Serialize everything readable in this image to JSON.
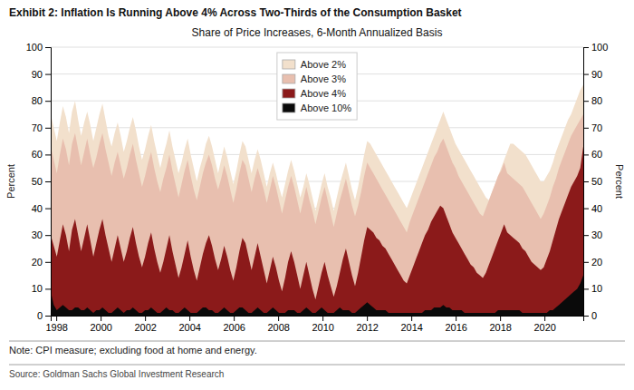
{
  "chart_data": {
    "type": "area",
    "title": "Exhibit 2: Inflation Is Running Above 4% Across Two-Thirds of the Consumption Basket",
    "subtitle": "Share of Price Increases, 6-Month Annualized Basis",
    "ylabel": "Percent",
    "y2label": "Percent",
    "annotations": [
      "Note: CPI measure; excluding food at home and energy.",
      "Source: Goldman Sachs Global Investment Research"
    ],
    "xlim": [
      1997.75,
      2021.75
    ],
    "xticks": [
      1998,
      2000,
      2002,
      2004,
      2006,
      2008,
      2010,
      2012,
      2014,
      2016,
      2018,
      2020
    ],
    "ylim": [
      0,
      100
    ],
    "yticks": [
      0,
      10,
      20,
      30,
      40,
      50,
      60,
      70,
      80,
      90,
      100
    ],
    "y2lim": [
      0,
      100
    ],
    "y2ticks": [
      0,
      10,
      20,
      30,
      40,
      50,
      60,
      70,
      80,
      90,
      100
    ],
    "grid": true,
    "legend": "top",
    "x": [
      1997.75,
      1997.8871,
      1998.0243,
      1998.1614,
      1998.2986,
      1998.4357,
      1998.5729,
      1998.71,
      1998.8471,
      1998.9843,
      1999.1214,
      1999.2586,
      1999.3957,
      1999.5329,
      1999.67,
      1999.8071,
      1999.9443,
      2000.0814,
      2000.2186,
      2000.3557,
      2000.4929,
      2000.63,
      2000.7671,
      2000.9043,
      2001.0414,
      2001.1786,
      2001.3157,
      2001.4529,
      2001.59,
      2001.7271,
      2001.8643,
      2002.0014,
      2002.1386,
      2002.2757,
      2002.4129,
      2002.55,
      2002.6871,
      2002.8243,
      2002.9614,
      2003.0986,
      2003.2357,
      2003.3729,
      2003.51,
      2003.6471,
      2003.7843,
      2003.9214,
      2004.0586,
      2004.1957,
      2004.3329,
      2004.47,
      2004.6071,
      2004.7443,
      2004.8814,
      2005.0186,
      2005.1557,
      2005.2929,
      2005.43,
      2005.5671,
      2005.7043,
      2005.8414,
      2005.9786,
      2006.1157,
      2006.2529,
      2006.39,
      2006.5271,
      2006.6643,
      2006.8014,
      2006.9386,
      2007.0757,
      2007.2129,
      2007.35,
      2007.4871,
      2007.6243,
      2007.7614,
      2007.8986,
      2008.0357,
      2008.1729,
      2008.31,
      2008.4471,
      2008.5843,
      2008.7214,
      2008.8586,
      2008.9957,
      2009.1329,
      2009.27,
      2009.4071,
      2009.5443,
      2009.6814,
      2009.8186,
      2009.9557,
      2010.0929,
      2010.23,
      2010.3671,
      2010.5043,
      2010.6414,
      2010.7786,
      2010.9157,
      2011.0529,
      2011.19,
      2011.3271,
      2011.4643,
      2011.6014,
      2011.7386,
      2011.8757,
      2012.0129,
      2012.15,
      2012.2871,
      2012.4243,
      2012.5614,
      2012.6986,
      2012.8357,
      2012.9729,
      2013.11,
      2013.2471,
      2013.3843,
      2013.5214,
      2013.6586,
      2013.7957,
      2013.9329,
      2014.07,
      2014.2071,
      2014.3443,
      2014.4814,
      2014.6186,
      2014.7557,
      2014.8929,
      2015.03,
      2015.1671,
      2015.3043,
      2015.4414,
      2015.5786,
      2015.7157,
      2015.8529,
      2015.99,
      2016.1271,
      2016.2643,
      2016.4014,
      2016.5386,
      2016.6757,
      2016.8129,
      2016.95,
      2017.0871,
      2017.2243,
      2017.3614,
      2017.4986,
      2017.6357,
      2017.7729,
      2017.91,
      2018.0471,
      2018.1843,
      2018.3214,
      2018.4586,
      2018.5957,
      2018.7329,
      2018.87,
      2019.0071,
      2019.1443,
      2019.2814,
      2019.4186,
      2019.5557,
      2019.6929,
      2019.83,
      2019.9671,
      2020.1043,
      2020.2414,
      2020.3786,
      2020.5157,
      2020.6529,
      2020.79,
      2020.9271,
      2021.0643,
      2021.2014,
      2021.3386,
      2021.4757,
      2021.6129,
      2021.75
    ],
    "series": [
      {
        "name": "Above 2%",
        "color": "#F2E0CC",
        "values": [
          75,
          70,
          65,
          72,
          78,
          74,
          68,
          76,
          80,
          73,
          67,
          72,
          76,
          71,
          65,
          70,
          75,
          79,
          73,
          67,
          63,
          68,
          72,
          67,
          61,
          65,
          70,
          74,
          69,
          63,
          58,
          62,
          67,
          71,
          65,
          60,
          55,
          60,
          64,
          69,
          63,
          58,
          53,
          57,
          62,
          66,
          60,
          55,
          50,
          55,
          59,
          64,
          67,
          63,
          58,
          53,
          58,
          63,
          59,
          54,
          49,
          54,
          60,
          65,
          63,
          58,
          53,
          58,
          62,
          58,
          53,
          48,
          53,
          57,
          53,
          48,
          44,
          49,
          54,
          58,
          54,
          49,
          44,
          48,
          53,
          49,
          44,
          39,
          44,
          49,
          53,
          48,
          44,
          39,
          44,
          49,
          53,
          57,
          52,
          47,
          43,
          48,
          54,
          60,
          65,
          64,
          62,
          60,
          58,
          56,
          54,
          52,
          50,
          48,
          46,
          44,
          42,
          40,
          43,
          46,
          49,
          52,
          55,
          58,
          61,
          64,
          67,
          70,
          73,
          76,
          73,
          70,
          67,
          64,
          62,
          60,
          58,
          56,
          54,
          52,
          50,
          48,
          46,
          44,
          43,
          46,
          49,
          52,
          55,
          58,
          61,
          64,
          64,
          63,
          62,
          61,
          60,
          58,
          56,
          54,
          52,
          50,
          50,
          52,
          54,
          57,
          61,
          64,
          67,
          70,
          73,
          75,
          78,
          81,
          84,
          86
        ]
      },
      {
        "name": "Above 3%",
        "color": "#E8BFAF",
        "values": [
          63,
          58,
          53,
          60,
          66,
          62,
          56,
          64,
          68,
          62,
          56,
          61,
          66,
          60,
          55,
          59,
          64,
          68,
          62,
          57,
          52,
          57,
          61,
          56,
          51,
          55,
          60,
          64,
          58,
          53,
          48,
          52,
          57,
          61,
          55,
          50,
          46,
          51,
          55,
          60,
          54,
          49,
          44,
          49,
          54,
          58,
          52,
          47,
          43,
          48,
          53,
          57,
          60,
          56,
          51,
          47,
          51,
          56,
          52,
          47,
          42,
          47,
          53,
          58,
          56,
          51,
          46,
          51,
          55,
          51,
          47,
          42,
          47,
          52,
          48,
          43,
          38,
          43,
          48,
          52,
          48,
          43,
          38,
          43,
          48,
          43,
          39,
          34,
          39,
          44,
          48,
          43,
          38,
          33,
          38,
          43,
          47,
          51,
          46,
          41,
          37,
          41,
          46,
          52,
          57,
          55,
          53,
          51,
          49,
          47,
          45,
          43,
          41,
          39,
          37,
          35,
          33,
          31,
          35,
          38,
          41,
          44,
          47,
          50,
          53,
          56,
          59,
          61,
          64,
          66,
          63,
          60,
          57,
          55,
          52,
          50,
          48,
          46,
          44,
          42,
          40,
          38,
          37,
          40,
          43,
          46,
          49,
          52,
          54,
          57,
          53,
          52,
          51,
          50,
          49,
          48,
          46,
          44,
          42,
          40,
          38,
          36,
          38,
          41,
          44,
          48,
          51,
          55,
          58,
          61,
          64,
          67,
          69,
          71,
          73,
          75
        ]
      },
      {
        "name": "Above 4%",
        "color": "#8B1A1A",
        "values": [
          30,
          26,
          22,
          28,
          34,
          30,
          24,
          32,
          36,
          30,
          24,
          29,
          34,
          28,
          22,
          27,
          32,
          36,
          30,
          25,
          20,
          25,
          30,
          25,
          20,
          24,
          29,
          33,
          27,
          22,
          18,
          22,
          27,
          31,
          25,
          20,
          16,
          20,
          25,
          30,
          24,
          19,
          14,
          18,
          23,
          28,
          22,
          17,
          13,
          18,
          23,
          27,
          30,
          26,
          21,
          17,
          21,
          26,
          22,
          17,
          13,
          18,
          24,
          29,
          27,
          22,
          17,
          22,
          27,
          22,
          17,
          12,
          17,
          22,
          18,
          13,
          9,
          14,
          20,
          24,
          20,
          15,
          10,
          15,
          20,
          15,
          10,
          6,
          11,
          16,
          20,
          15,
          11,
          7,
          11,
          16,
          21,
          25,
          20,
          15,
          11,
          16,
          22,
          28,
          33,
          32,
          31,
          29,
          28,
          26,
          25,
          23,
          21,
          19,
          17,
          15,
          13,
          12,
          15,
          18,
          21,
          24,
          27,
          30,
          32,
          35,
          37,
          39,
          41,
          40,
          37,
          34,
          31,
          29,
          27,
          25,
          23,
          21,
          19,
          18,
          16,
          15,
          14,
          16,
          19,
          22,
          25,
          28,
          31,
          34,
          31,
          30,
          29,
          28,
          27,
          25,
          24,
          22,
          20,
          19,
          18,
          17,
          18,
          21,
          24,
          28,
          32,
          36,
          39,
          42,
          45,
          48,
          50,
          52,
          55,
          63
        ]
      },
      {
        "name": "Above 10%",
        "color": "#0A0A0A",
        "values": [
          9,
          4,
          2,
          3,
          4,
          3,
          2,
          2,
          3,
          3,
          2,
          2,
          3,
          2,
          1,
          2,
          2,
          3,
          2,
          1,
          1,
          2,
          3,
          2,
          1,
          2,
          2,
          3,
          2,
          1,
          1,
          2,
          2,
          3,
          2,
          1,
          1,
          2,
          3,
          2,
          2,
          1,
          1,
          2,
          3,
          2,
          1,
          1,
          1,
          2,
          3,
          3,
          2,
          2,
          1,
          1,
          2,
          3,
          2,
          1,
          1,
          2,
          3,
          3,
          2,
          1,
          1,
          2,
          3,
          2,
          1,
          1,
          2,
          3,
          2,
          1,
          1,
          1,
          2,
          2,
          2,
          1,
          1,
          2,
          3,
          2,
          1,
          1,
          2,
          3,
          2,
          1,
          1,
          1,
          2,
          3,
          2,
          2,
          2,
          1,
          1,
          2,
          3,
          4,
          5,
          4,
          3,
          2,
          2,
          2,
          2,
          1,
          1,
          1,
          1,
          1,
          1,
          1,
          1,
          1,
          1,
          1,
          1,
          2,
          2,
          2,
          3,
          3,
          3,
          4,
          3,
          3,
          2,
          2,
          2,
          2,
          1,
          1,
          1,
          1,
          1,
          1,
          1,
          1,
          1,
          1,
          1,
          2,
          2,
          2,
          2,
          2,
          2,
          2,
          2,
          1,
          1,
          1,
          1,
          1,
          1,
          1,
          1,
          1,
          2,
          2,
          3,
          4,
          5,
          6,
          7,
          8,
          9,
          10,
          12,
          15
        ]
      }
    ]
  }
}
